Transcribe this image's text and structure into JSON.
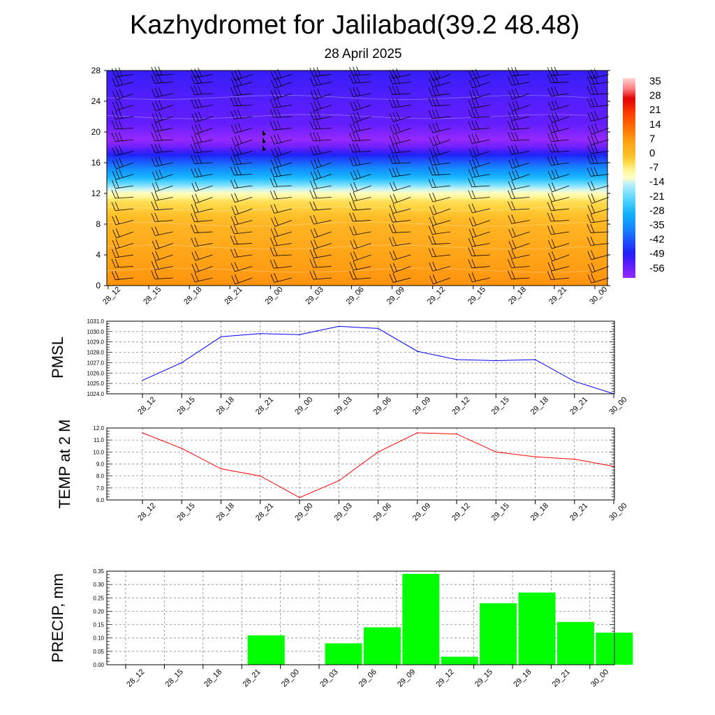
{
  "title": "Kazhydromet for Jalilabad(39.2 48.48)",
  "subtitle": "28 April 2025",
  "time_labels": [
    "28_12",
    "28_15",
    "28_18",
    "28_21",
    "29_00",
    "29_03",
    "29_06",
    "29_09",
    "29_12",
    "29_15",
    "29_18",
    "29_21",
    "30_00"
  ],
  "chart_data": [
    {
      "type": "heatmap",
      "title": "",
      "ylabel": "",
      "x": [
        "28_12",
        "28_15",
        "28_18",
        "28_21",
        "29_00",
        "29_03",
        "29_06",
        "29_09",
        "29_12",
        "29_15",
        "29_18",
        "29_21",
        "30_00"
      ],
      "yticks": [
        0,
        4,
        8,
        12,
        16,
        20,
        24,
        28
      ],
      "ylim": [
        0,
        28
      ],
      "colorbar_labels": [
        "35",
        "28",
        "21",
        "14",
        "7",
        "0",
        "-7",
        "-14",
        "-21",
        "-28",
        "-35",
        "-42",
        "-49",
        "-56"
      ],
      "colorbar_range": [
        -60,
        38
      ],
      "temperature_profile": [
        {
          "level": 0,
          "value": 9
        },
        {
          "level": 4,
          "value": 6
        },
        {
          "level": 8,
          "value": 2
        },
        {
          "level": 11,
          "value": -4
        },
        {
          "level": 12.5,
          "value": -13
        },
        {
          "level": 14,
          "value": -27
        },
        {
          "level": 16,
          "value": -40
        },
        {
          "level": 18,
          "value": -55
        },
        {
          "level": 19,
          "value": -60
        },
        {
          "level": 21,
          "value": -54
        },
        {
          "level": 23.5,
          "value": -53
        },
        {
          "level": 28,
          "value": -50
        }
      ],
      "wind_barbs": "black, shown on a grid over the field",
      "grid": false
    },
    {
      "type": "line",
      "ylabel": "PMSL",
      "x": [
        "28_12",
        "28_15",
        "28_18",
        "28_21",
        "29_00",
        "29_03",
        "29_06",
        "29_09",
        "29_12",
        "29_15",
        "29_18",
        "29_21",
        "30_00"
      ],
      "values": [
        1025.3,
        1027.0,
        1029.5,
        1029.8,
        1029.7,
        1030.5,
        1030.3,
        1028.1,
        1027.3,
        1027.2,
        1027.3,
        1025.2,
        1024.0
      ],
      "ylim": [
        1024.0,
        1031.0
      ],
      "yticks": [
        "1024.0",
        "1025.0",
        "1026.0",
        "1027.0",
        "1028.0",
        "1029.0",
        "1030.0",
        "1031.0"
      ],
      "color": "#0000ff",
      "grid": true
    },
    {
      "type": "line",
      "ylabel": "TEMP at 2 M",
      "x": [
        "28_12",
        "28_15",
        "28_18",
        "28_21",
        "29_00",
        "29_03",
        "29_06",
        "29_09",
        "29_12",
        "29_15",
        "29_18",
        "29_21",
        "30_00"
      ],
      "values": [
        11.6,
        10.3,
        8.6,
        8.0,
        6.2,
        7.6,
        10.0,
        11.6,
        11.5,
        10.0,
        9.6,
        9.4,
        8.8
      ],
      "ylim": [
        6.0,
        12.0
      ],
      "yticks": [
        "6.0",
        "7.0",
        "8.0",
        "9.0",
        "10.0",
        "11.0",
        "12.0"
      ],
      "color": "#ff0000",
      "grid": true
    },
    {
      "type": "bar",
      "ylabel": "PRECIP, mm",
      "categories": [
        "28_12",
        "28_15",
        "28_18",
        "28_21",
        "29_00",
        "29_03",
        "29_06",
        "29_09",
        "29_12",
        "29_15",
        "29_18",
        "29_21",
        "30_00"
      ],
      "values": [
        0,
        0,
        0,
        0.11,
        0,
        0.08,
        0.14,
        0.34,
        0.03,
        0.23,
        0.27,
        0.16,
        0.12
      ],
      "ylim": [
        0,
        0.35
      ],
      "yticks": [
        "0.00",
        "0.05",
        "0.10",
        "0.15",
        "0.20",
        "0.25",
        "0.30",
        "0.35"
      ],
      "color": "#00ff00",
      "grid": true
    }
  ]
}
